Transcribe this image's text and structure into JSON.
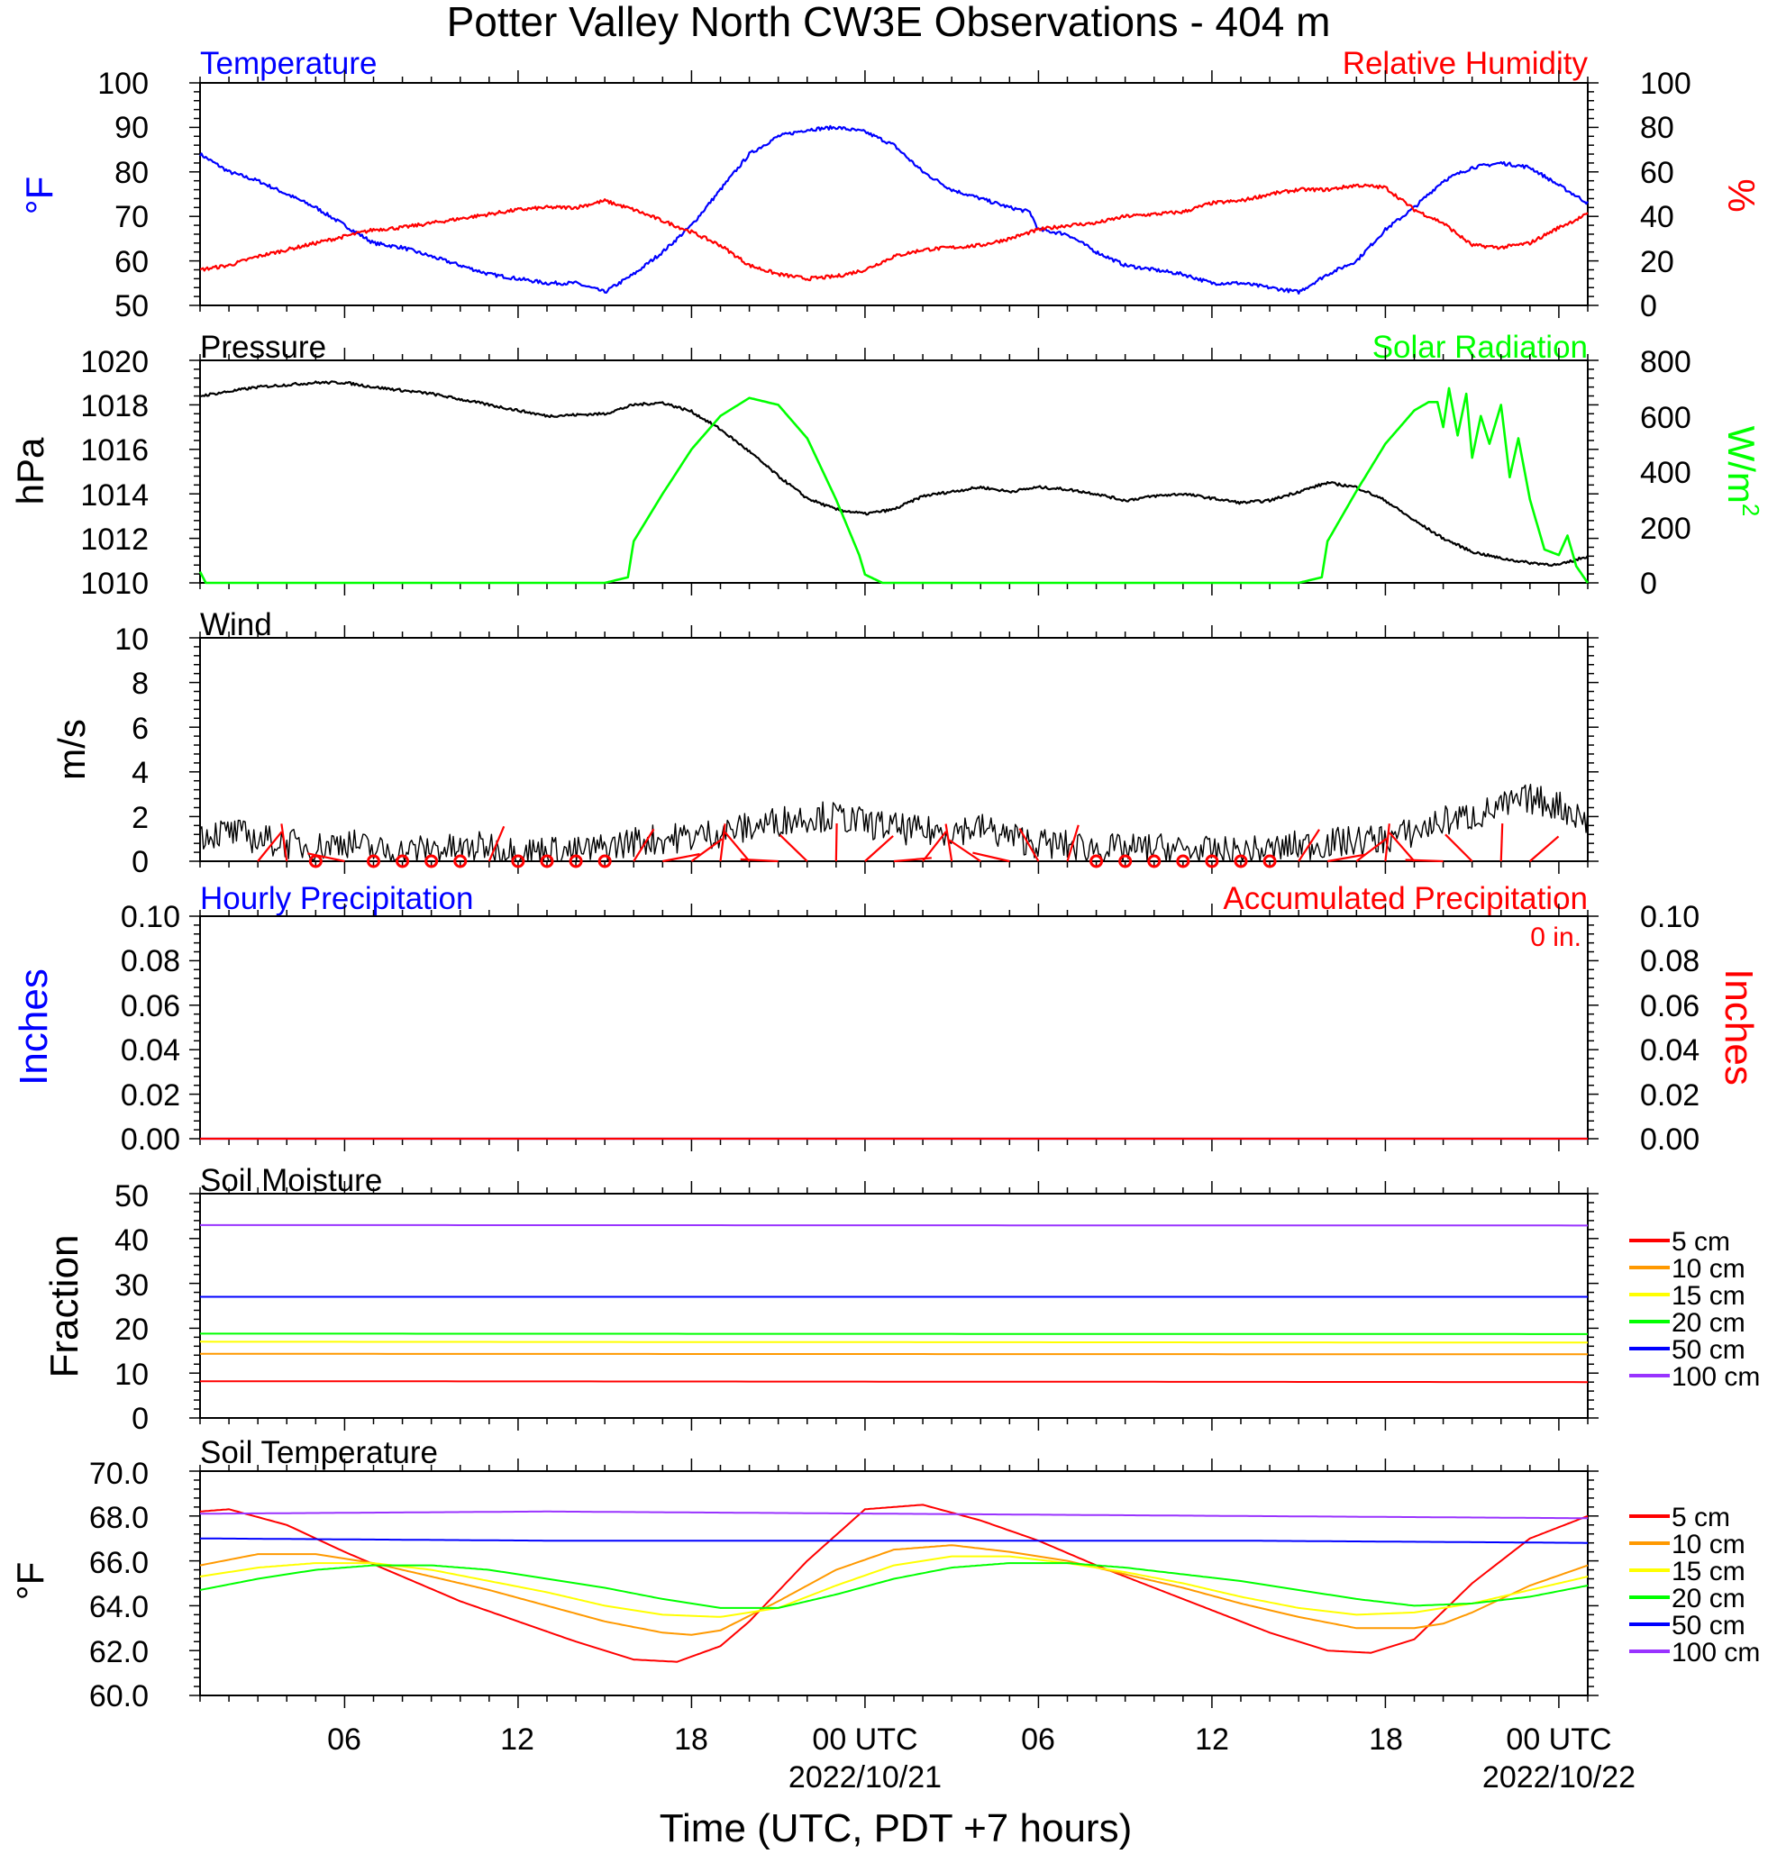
{
  "title": "Potter Valley North CW3E Observations - 404 m",
  "x_axis": {
    "title": "Time (UTC, PDT +7 hours)",
    "tick_labels": [
      "06",
      "12",
      "18",
      "00 UTC",
      "06",
      "12",
      "18",
      "00 UTC"
    ],
    "date_labels": [
      "2022/10/21",
      "2022/10/22"
    ]
  },
  "panels": {
    "temperature": {
      "left_title": "Temperature",
      "right_title": "Relative Humidity",
      "left_unit": "°F",
      "right_unit": "%",
      "left_ticks": [
        "50",
        "60",
        "70",
        "80",
        "90",
        "100"
      ],
      "right_ticks": [
        "0",
        "20",
        "40",
        "60",
        "80",
        "100"
      ]
    },
    "pressure": {
      "left_title": "Pressure",
      "right_title": "Solar Radiation",
      "left_unit": "hPa",
      "right_unit_base": "W/m",
      "right_unit_exp": "2",
      "left_ticks": [
        "1010",
        "1012",
        "1014",
        "1016",
        "1018",
        "1020"
      ],
      "right_ticks": [
        "0",
        "200",
        "400",
        "600",
        "800"
      ]
    },
    "wind": {
      "left_title": "Wind",
      "left_unit": "m/s",
      "left_ticks": [
        "0",
        "2",
        "4",
        "6",
        "8",
        "10"
      ]
    },
    "precip": {
      "left_title": "Hourly Precipitation",
      "right_title": "Accumulated Precipitation",
      "left_unit": "Inches",
      "right_unit": "Inches",
      "total_label": "0 in.",
      "left_ticks": [
        "0.00",
        "0.02",
        "0.04",
        "0.06",
        "0.08",
        "0.10"
      ],
      "right_ticks": [
        "0.00",
        "0.02",
        "0.04",
        "0.06",
        "0.08",
        "0.10"
      ]
    },
    "soil_moisture": {
      "left_title": "Soil Moisture",
      "left_unit": "Fraction",
      "left_ticks": [
        "0",
        "10",
        "20",
        "30",
        "40",
        "50"
      ],
      "legend": [
        "5 cm",
        "10 cm",
        "15 cm",
        "20 cm",
        "50 cm",
        "100 cm"
      ]
    },
    "soil_temperature": {
      "left_title": "Soil Temperature",
      "left_unit": "°F",
      "left_ticks": [
        "60.0",
        "62.0",
        "64.0",
        "66.0",
        "68.0",
        "70.0"
      ],
      "legend": [
        "5 cm",
        "10 cm",
        "15 cm",
        "20 cm",
        "50 cm",
        "100 cm"
      ]
    }
  },
  "colors": {
    "temperature": "#0000ff",
    "humidity": "#ff0000",
    "pressure": "#000000",
    "solar": "#00ff00",
    "wind": "#000000",
    "wind_barb": "#ff0000",
    "precip_hourly": "#0000ff",
    "precip_accum": "#ff0000",
    "depth_5cm": "#ff0000",
    "depth_10cm": "#ff9900",
    "depth_15cm": "#ffff00",
    "depth_20cm": "#00ff00",
    "depth_50cm": "#0000ff",
    "depth_100cm": "#9933ff"
  },
  "chart_data": [
    {
      "type": "line",
      "x_unit": "hours UTC from 2022-10-20 00:00 UTC",
      "xlim": [
        1,
        49
      ],
      "series": [
        {
          "name": "Temperature",
          "axis": "left",
          "ylim": [
            50,
            100
          ],
          "x": [
            1,
            2,
            3,
            4,
            5,
            6,
            7,
            8,
            9,
            10,
            11,
            12,
            13,
            14,
            15,
            15.5,
            16,
            17,
            18,
            19,
            20,
            21,
            22,
            23,
            24,
            25,
            26,
            27,
            28,
            29,
            29.7,
            30,
            31,
            32,
            33,
            34,
            35,
            36,
            37,
            38,
            39,
            40,
            41,
            42,
            43,
            44,
            45,
            46,
            47,
            48,
            49
          ],
          "values": [
            84,
            80,
            78,
            75,
            72,
            68,
            64,
            63,
            61,
            59,
            57,
            56,
            55,
            55,
            53,
            55,
            57,
            62,
            68,
            76,
            84,
            88,
            89.5,
            90,
            89,
            86,
            80,
            76,
            74,
            72,
            71,
            67,
            66,
            62,
            59,
            58,
            57,
            55,
            55,
            54,
            53,
            57,
            60,
            67,
            72,
            78,
            81,
            82,
            81,
            77,
            73
          ]
        },
        {
          "name": "Relative Humidity",
          "axis": "right",
          "ylim": [
            0,
            100
          ],
          "x": [
            1,
            2,
            3,
            4,
            5,
            6,
            7,
            8,
            9,
            10,
            11,
            12,
            13,
            14,
            15,
            16,
            17,
            18,
            19,
            20,
            21,
            22,
            23,
            24,
            25,
            26,
            27,
            28,
            29,
            30,
            31,
            32,
            33,
            34,
            35,
            36,
            37,
            38,
            39,
            40,
            41,
            42,
            43,
            44,
            45,
            46,
            47,
            48,
            49
          ],
          "values": [
            16,
            18,
            22,
            25,
            28,
            31,
            34,
            35,
            37,
            39,
            41,
            43,
            44,
            44,
            47,
            43,
            38,
            33,
            27,
            18,
            14,
            12,
            13,
            16,
            22,
            25,
            26,
            27,
            30,
            34,
            36,
            37,
            40,
            41,
            42,
            46,
            47,
            50,
            52,
            52,
            54,
            53,
            43,
            37,
            27,
            26,
            28,
            35,
            41
          ]
        }
      ]
    },
    {
      "type": "line",
      "x_unit": "hours UTC from 2022-10-20 00:00 UTC",
      "xlim": [
        1,
        49
      ],
      "series": [
        {
          "name": "Pressure",
          "axis": "left",
          "ylim": [
            1010,
            1020
          ],
          "x": [
            1,
            3,
            5,
            6,
            7,
            9,
            11,
            13,
            15,
            16,
            17,
            18,
            19,
            20,
            21,
            22,
            23,
            24,
            25,
            26,
            27,
            28,
            29,
            30,
            31,
            32,
            33,
            34,
            35,
            36,
            37,
            38,
            39,
            40,
            41,
            42,
            43,
            44,
            45,
            46,
            47,
            48,
            49
          ],
          "values": [
            1018.4,
            1018.8,
            1019.0,
            1019.0,
            1018.8,
            1018.5,
            1018.0,
            1017.5,
            1017.6,
            1018.0,
            1018.1,
            1017.7,
            1016.9,
            1015.9,
            1014.8,
            1013.8,
            1013.3,
            1013.1,
            1013.3,
            1013.9,
            1014.1,
            1014.3,
            1014.1,
            1014.3,
            1014.2,
            1014.0,
            1013.7,
            1013.9,
            1014.0,
            1013.8,
            1013.6,
            1013.7,
            1014.1,
            1014.5,
            1014.3,
            1013.7,
            1012.8,
            1012.0,
            1011.4,
            1011.1,
            1010.9,
            1010.8,
            1011.2
          ]
        },
        {
          "name": "Solar Radiation",
          "axis": "right",
          "ylim": [
            0,
            800
          ],
          "x": [
            1,
            1.2,
            15,
            15.8,
            16,
            17,
            18,
            19,
            20,
            21,
            22,
            23,
            23.8,
            24,
            24.6,
            25,
            30,
            33,
            39,
            39.8,
            40,
            41,
            42,
            43,
            43.5,
            43.8,
            44,
            44.2,
            44.5,
            44.8,
            45,
            45.3,
            45.6,
            46,
            46.3,
            46.6,
            47,
            47.5,
            48,
            48.3,
            48.6,
            49
          ],
          "values": [
            40,
            0,
            0,
            20,
            150,
            320,
            480,
            600,
            665,
            640,
            520,
            300,
            100,
            30,
            0,
            0,
            0,
            0,
            0,
            20,
            150,
            330,
            500,
            620,
            650,
            650,
            560,
            700,
            530,
            680,
            450,
            600,
            500,
            640,
            380,
            520,
            300,
            120,
            100,
            170,
            60,
            0
          ]
        }
      ]
    },
    {
      "type": "line",
      "x_unit": "hours UTC from 2022-10-20 00:00 UTC",
      "xlim": [
        1,
        49
      ],
      "ylim": [
        0,
        10
      ],
      "series": [
        {
          "name": "Wind",
          "x": [
            1,
            2,
            3,
            4,
            5,
            6,
            7,
            8,
            9,
            10,
            11,
            12,
            13,
            14,
            15,
            16,
            17,
            18,
            19,
            20,
            21,
            22,
            23,
            24,
            25,
            26,
            27,
            28,
            29,
            30,
            31,
            32,
            33,
            34,
            35,
            36,
            37,
            38,
            39,
            40,
            41,
            42,
            43,
            44,
            45,
            46,
            47,
            48,
            49
          ],
          "values": [
            1.2,
            1.3,
            1.0,
            0.8,
            0.6,
            0.9,
            0.5,
            0.4,
            0.6,
            0.5,
            0.7,
            0.4,
            0.5,
            0.4,
            0.6,
            0.9,
            1.0,
            1.1,
            1.3,
            1.5,
            1.8,
            2.0,
            2.0,
            1.7,
            1.5,
            1.3,
            1.4,
            1.5,
            1.1,
            0.8,
            0.7,
            0.6,
            0.5,
            0.6,
            0.5,
            0.4,
            0.4,
            0.5,
            0.7,
            0.8,
            0.9,
            1.0,
            1.3,
            1.8,
            2.0,
            2.4,
            2.8,
            2.5,
            1.8
          ]
        }
      ]
    },
    {
      "type": "line",
      "x_unit": "hours UTC from 2022-10-20 00:00 UTC",
      "xlim": [
        1,
        49
      ],
      "ylim": [
        0,
        0.1
      ],
      "series": [
        {
          "name": "Hourly Precipitation",
          "x": [
            1,
            49
          ],
          "values": [
            0,
            0
          ]
        },
        {
          "name": "Accumulated Precipitation",
          "x": [
            1,
            49
          ],
          "values": [
            0,
            0
          ]
        }
      ]
    },
    {
      "type": "line",
      "x_unit": "hours UTC from 2022-10-20 00:00 UTC",
      "xlim": [
        1,
        49
      ],
      "ylim": [
        0,
        50
      ],
      "series": [
        {
          "name": "5 cm",
          "x": [
            1,
            49
          ],
          "values": [
            8.2,
            8.0
          ]
        },
        {
          "name": "10 cm",
          "x": [
            1,
            49
          ],
          "values": [
            14.3,
            14.2
          ]
        },
        {
          "name": "15 cm",
          "x": [
            1,
            49
          ],
          "values": [
            17.0,
            16.8
          ]
        },
        {
          "name": "20 cm",
          "x": [
            1,
            49
          ],
          "values": [
            18.8,
            18.7
          ]
        },
        {
          "name": "50 cm",
          "x": [
            1,
            49
          ],
          "values": [
            27.0,
            27.0
          ]
        },
        {
          "name": "100 cm",
          "x": [
            1,
            49
          ],
          "values": [
            43.0,
            42.9
          ]
        }
      ]
    },
    {
      "type": "line",
      "x_unit": "hours UTC from 2022-10-20 00:00 UTC",
      "xlim": [
        1,
        49
      ],
      "ylim": [
        60,
        70
      ],
      "series": [
        {
          "name": "5 cm",
          "x": [
            1,
            2,
            4,
            6,
            8,
            10,
            12,
            14,
            16,
            17.5,
            19,
            20,
            22,
            24,
            26,
            28,
            30,
            32,
            34,
            36,
            38,
            40,
            41.5,
            43,
            45,
            47,
            49
          ],
          "values": [
            68.2,
            68.3,
            67.6,
            66.4,
            65.3,
            64.2,
            63.3,
            62.4,
            61.6,
            61.5,
            62.2,
            63.3,
            66.0,
            68.3,
            68.5,
            67.8,
            66.9,
            65.8,
            64.8,
            63.8,
            62.8,
            62.0,
            61.9,
            62.5,
            65.0,
            67.0,
            68.0
          ]
        },
        {
          "name": "10 cm",
          "x": [
            1,
            3,
            5,
            7,
            9,
            11,
            13,
            15,
            17,
            18,
            19,
            21,
            23,
            25,
            27,
            29,
            31,
            33,
            35,
            37,
            39,
            41,
            43,
            44,
            45,
            47,
            49
          ],
          "values": [
            65.8,
            66.3,
            66.3,
            65.9,
            65.3,
            64.7,
            64.0,
            63.3,
            62.8,
            62.7,
            62.9,
            64.2,
            65.6,
            66.5,
            66.7,
            66.4,
            66.0,
            65.4,
            64.8,
            64.1,
            63.5,
            63.0,
            63.0,
            63.2,
            63.7,
            64.9,
            65.8
          ]
        },
        {
          "name": "15 cm",
          "x": [
            1,
            3,
            5,
            7,
            9,
            11,
            13,
            15,
            17,
            19,
            21,
            23,
            25,
            27,
            29,
            31,
            33,
            35,
            37,
            39,
            41,
            43,
            45,
            47,
            49
          ],
          "values": [
            65.3,
            65.7,
            65.9,
            65.9,
            65.6,
            65.1,
            64.6,
            64.0,
            63.6,
            63.5,
            63.9,
            64.9,
            65.8,
            66.2,
            66.2,
            65.9,
            65.5,
            65.0,
            64.4,
            63.9,
            63.6,
            63.7,
            64.1,
            64.7,
            65.3
          ]
        },
        {
          "name": "20 cm",
          "x": [
            1,
            3,
            5,
            7,
            9,
            11,
            13,
            15,
            17,
            19,
            21,
            23,
            25,
            27,
            29,
            31,
            33,
            35,
            37,
            39,
            41,
            43,
            45,
            47,
            49
          ],
          "values": [
            64.7,
            65.2,
            65.6,
            65.8,
            65.8,
            65.6,
            65.2,
            64.8,
            64.3,
            63.9,
            63.9,
            64.5,
            65.2,
            65.7,
            65.9,
            65.9,
            65.7,
            65.4,
            65.1,
            64.7,
            64.3,
            64.0,
            64.1,
            64.4,
            64.9
          ]
        },
        {
          "name": "50 cm",
          "x": [
            1,
            13,
            25,
            37,
            49
          ],
          "values": [
            67.0,
            66.9,
            66.9,
            66.9,
            66.8
          ]
        },
        {
          "name": "100 cm",
          "x": [
            1,
            13,
            25,
            37,
            49
          ],
          "values": [
            68.1,
            68.2,
            68.1,
            68.0,
            67.9
          ]
        }
      ]
    }
  ]
}
